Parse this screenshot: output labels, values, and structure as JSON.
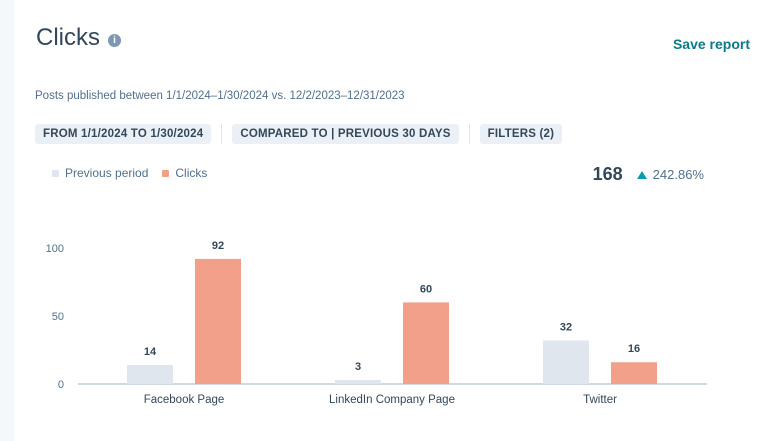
{
  "header": {
    "title": "Clicks",
    "info_icon": "info-icon",
    "save_label": "Save report"
  },
  "subtitle": "Posts published between 1/1/2024–1/30/2024 vs. 12/2/2023–12/31/2023",
  "filters": {
    "date_range": "FROM 1/1/2024 TO 1/30/2024",
    "compared_to": "COMPARED TO | PREVIOUS 30 DAYS",
    "filters": "FILTERS (2)"
  },
  "legend": {
    "previous": "Previous period",
    "clicks": "Clicks"
  },
  "kpi": {
    "value": "168",
    "change": "242.86%",
    "arrow_icon": "triangle-up-icon"
  },
  "colors": {
    "accent": "#0a7b8e",
    "previous": "#dfe6ee",
    "clicks": "#f2a08a",
    "arrow": "#0a9bb0"
  },
  "chart_data": {
    "type": "bar",
    "categories": [
      "Facebook Page",
      "LinkedIn Company Page",
      "Twitter"
    ],
    "series": [
      {
        "name": "Previous period",
        "values": [
          14,
          3,
          32
        ]
      },
      {
        "name": "Clicks",
        "values": [
          92,
          60,
          16
        ]
      }
    ],
    "yticks": [
      0,
      50,
      100
    ],
    "ylim": [
      0,
      100
    ],
    "grid": false,
    "legend_position": "top-left"
  }
}
